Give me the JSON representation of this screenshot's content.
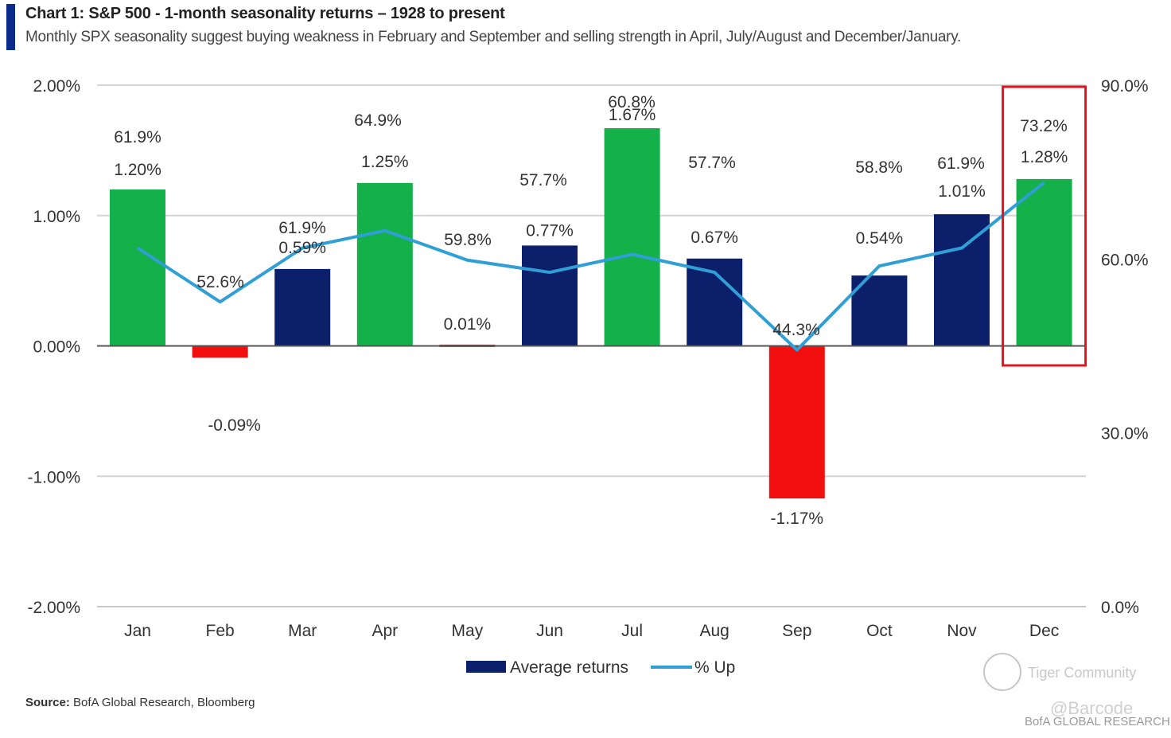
{
  "header": {
    "title": "Chart 1: S&P 500 - 1-month seasonality returns – 1928 to present",
    "subtitle": "Monthly SPX seasonality suggest buying weakness in February and September and selling strength in April, July/August and December/January."
  },
  "source": {
    "label": "Source:",
    "text": "BofA Global Research, Bloomberg"
  },
  "watermarks": {
    "community": "Tiger Community",
    "handle": "@Barcode",
    "research": "BofA GLOBAL RESEARCH"
  },
  "colors": {
    "positive_high": "#14b04a",
    "positive": "#0b1f6b",
    "negative": "#f20f0f",
    "line": "#2f9fd6",
    "highlight": "#e0141c"
  },
  "chart_data": {
    "type": "bar",
    "categories": [
      "Jan",
      "Feb",
      "Mar",
      "Apr",
      "May",
      "Jun",
      "Jul",
      "Aug",
      "Sep",
      "Oct",
      "Nov",
      "Dec"
    ],
    "series": [
      {
        "name": "Average returns",
        "axis": "left",
        "values": [
          1.2,
          -0.09,
          0.59,
          1.25,
          0.01,
          0.77,
          1.67,
          0.67,
          -1.17,
          0.54,
          1.01,
          1.28
        ],
        "labels": [
          "1.20%",
          "-0.09%",
          "0.59%",
          "1.25%",
          "0.01%",
          "0.77%",
          "1.67%",
          "0.67%",
          "-1.17%",
          "0.54%",
          "1.01%",
          "1.28%"
        ],
        "bar_colors": [
          "#14b04a",
          "#f20f0f",
          "#0b1f6b",
          "#14b04a",
          "#f20f0f",
          "#0b1f6b",
          "#14b04a",
          "#0b1f6b",
          "#f20f0f",
          "#0b1f6b",
          "#0b1f6b",
          "#14b04a"
        ]
      },
      {
        "name": "% Up",
        "axis": "right",
        "type": "line",
        "values": [
          61.9,
          52.6,
          61.9,
          64.9,
          59.8,
          57.7,
          60.8,
          57.7,
          44.3,
          58.8,
          61.9,
          73.2
        ],
        "labels": [
          "61.9%",
          "52.6%",
          "61.9%",
          "64.9%",
          "59.8%",
          "57.7%",
          "60.8%",
          "57.7%",
          "44.3%",
          "58.8%",
          "61.9%",
          "73.2%"
        ]
      }
    ],
    "y_left": {
      "lim": [
        -2.0,
        2.0
      ],
      "ticks": [
        2.0,
        1.0,
        0.0,
        -1.0,
        -2.0
      ],
      "tick_labels": [
        "2.00%",
        "1.00%",
        "0.00%",
        "-1.00%",
        "-2.00%"
      ]
    },
    "y_right": {
      "lim": [
        0,
        90
      ],
      "ticks": [
        90,
        60,
        30,
        0
      ],
      "tick_labels": [
        "90.0%",
        "60.0%",
        "30.0%",
        "0.0%"
      ]
    },
    "grid": true,
    "legend": {
      "position": "bottom",
      "entries": [
        "Average returns",
        "% Up"
      ]
    },
    "highlight": {
      "category": "Dec"
    }
  }
}
